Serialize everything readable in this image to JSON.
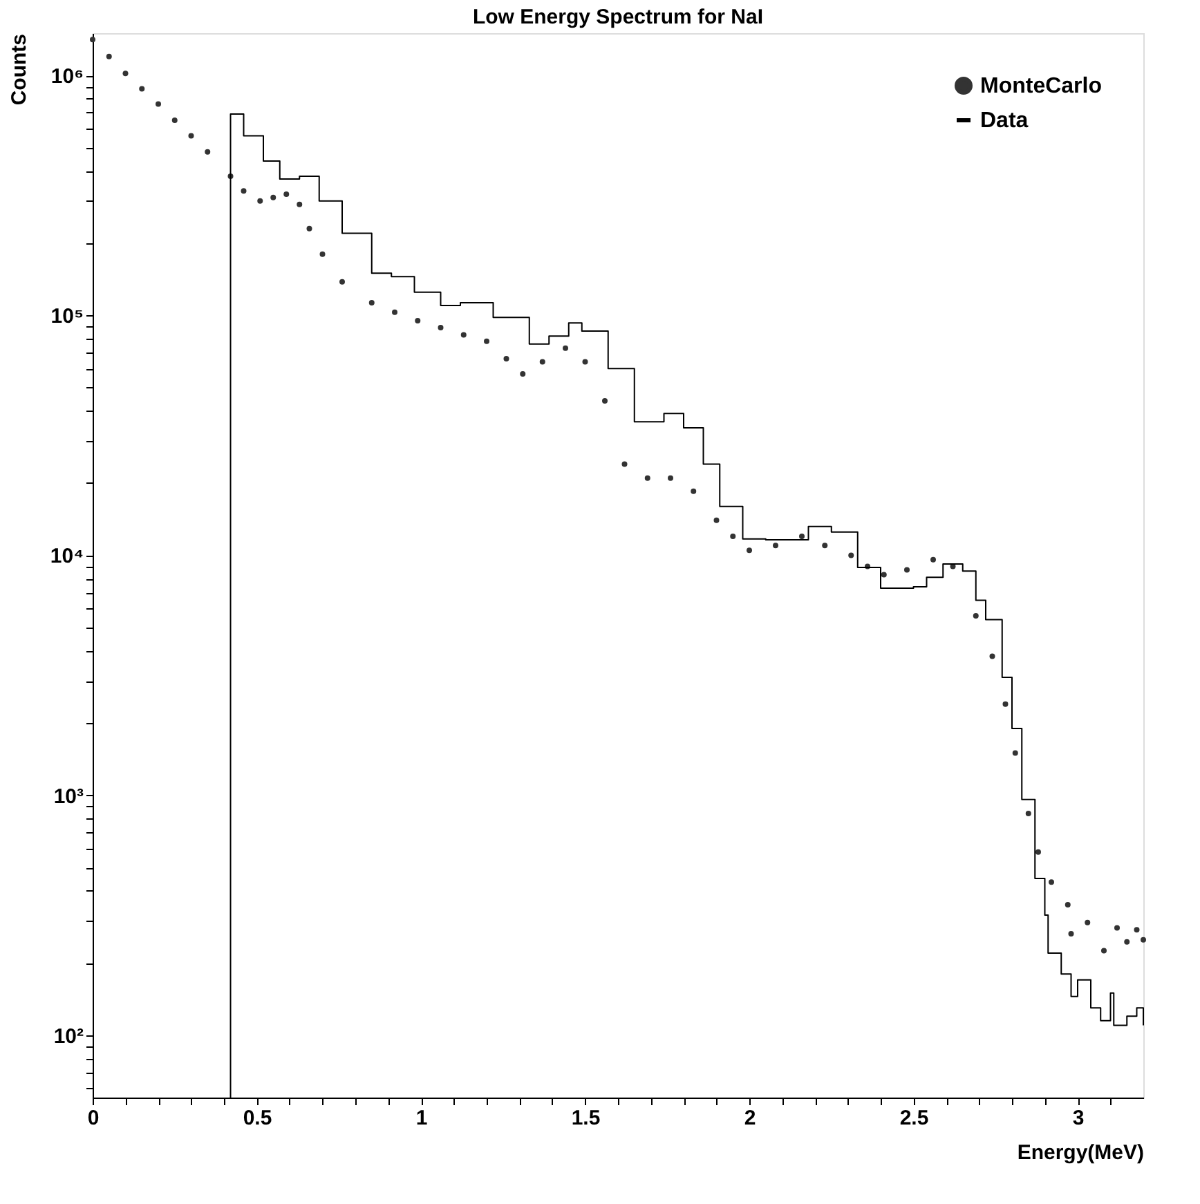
{
  "chart_data": {
    "type": "scatter",
    "title": "Low Energy Spectrum for NaI",
    "xlabel": "Energy(MeV)",
    "ylabel": "Counts",
    "log": "y",
    "xlim": [
      0,
      3.2
    ],
    "ylim": [
      55,
      1500000
    ],
    "xticks": [
      0,
      {
        "value": 0.1,
        "label": null
      },
      {
        "value": 0.2,
        "label": null
      },
      {
        "value": 0.3,
        "label": null
      },
      {
        "value": 0.4,
        "label": null
      },
      0.5,
      {
        "value": 0.6,
        "label": null
      },
      {
        "value": 0.7,
        "label": null
      },
      {
        "value": 0.8,
        "label": null
      },
      {
        "value": 0.9,
        "label": null
      },
      1,
      {
        "value": 1.1,
        "label": null
      },
      {
        "value": 1.2,
        "label": null
      },
      {
        "value": 1.3,
        "label": null
      },
      {
        "value": 1.4,
        "label": null
      },
      1.5,
      {
        "value": 1.6,
        "label": null
      },
      {
        "value": 1.7,
        "label": null
      },
      {
        "value": 1.8,
        "label": null
      },
      {
        "value": 1.9,
        "label": null
      },
      2,
      {
        "value": 2.1,
        "label": null
      },
      {
        "value": 2.2,
        "label": null
      },
      {
        "value": 2.3,
        "label": null
      },
      {
        "value": 2.4,
        "label": null
      },
      2.5,
      {
        "value": 2.6,
        "label": null
      },
      {
        "value": 2.7,
        "label": null
      },
      {
        "value": 2.8,
        "label": null
      },
      {
        "value": 2.9,
        "label": null
      },
      3,
      {
        "value": 3.1,
        "label": null
      }
    ],
    "yticks": [
      {
        "value": 60,
        "label": null
      },
      {
        "value": 70,
        "label": null
      },
      {
        "value": 80,
        "label": null
      },
      {
        "value": 90,
        "label": null
      },
      {
        "value": 100,
        "label": "10²"
      },
      {
        "value": 200,
        "label": null
      },
      {
        "value": 300,
        "label": null
      },
      {
        "value": 400,
        "label": null
      },
      {
        "value": 500,
        "label": null
      },
      {
        "value": 600,
        "label": null
      },
      {
        "value": 700,
        "label": null
      },
      {
        "value": 800,
        "label": null
      },
      {
        "value": 900,
        "label": null
      },
      {
        "value": 1000,
        "label": "10³"
      },
      {
        "value": 2000,
        "label": null
      },
      {
        "value": 3000,
        "label": null
      },
      {
        "value": 4000,
        "label": null
      },
      {
        "value": 5000,
        "label": null
      },
      {
        "value": 6000,
        "label": null
      },
      {
        "value": 7000,
        "label": null
      },
      {
        "value": 8000,
        "label": null
      },
      {
        "value": 9000,
        "label": null
      },
      {
        "value": 10000,
        "label": "10⁴"
      },
      {
        "value": 20000,
        "label": null
      },
      {
        "value": 30000,
        "label": null
      },
      {
        "value": 40000,
        "label": null
      },
      {
        "value": 50000,
        "label": null
      },
      {
        "value": 60000,
        "label": null
      },
      {
        "value": 70000,
        "label": null
      },
      {
        "value": 80000,
        "label": null
      },
      {
        "value": 90000,
        "label": null
      },
      {
        "value": 100000,
        "label": "10⁵"
      },
      {
        "value": 200000,
        "label": null
      },
      {
        "value": 300000,
        "label": null
      },
      {
        "value": 400000,
        "label": null
      },
      {
        "value": 500000,
        "label": null
      },
      {
        "value": 600000,
        "label": null
      },
      {
        "value": 700000,
        "label": null
      },
      {
        "value": 800000,
        "label": null
      },
      {
        "value": 900000,
        "label": null
      },
      {
        "value": 1000000,
        "label": "10⁶"
      }
    ],
    "grid": false,
    "legend": "top right",
    "series": [
      {
        "name": "MonteCarlo",
        "marker": "circle",
        "color": "#333333",
        "x": [
          0,
          0.05,
          0.1,
          0.15,
          0.2,
          0.25,
          0.3,
          0.35,
          0.42,
          0.46,
          0.51,
          0.55,
          0.59,
          0.63,
          0.66,
          0.7,
          0.76,
          0.85,
          0.92,
          0.99,
          1.06,
          1.13,
          1.2,
          1.26,
          1.31,
          1.37,
          1.44,
          1.5,
          1.56,
          1.62,
          1.69,
          1.76,
          1.83,
          1.9,
          1.95,
          2.0,
          2.08,
          2.16,
          2.23,
          2.31,
          2.36,
          2.41,
          2.48,
          2.56,
          2.62,
          2.69,
          2.74,
          2.78,
          2.81,
          2.85,
          2.88,
          2.92,
          2.97,
          2.98,
          3.03,
          3.08,
          3.12,
          3.15,
          3.18,
          3.2
        ],
        "values": [
          1410000,
          1200000,
          1020000,
          880000,
          760000,
          650000,
          560000,
          480000,
          380000,
          330000,
          300000,
          310000,
          320000,
          290000,
          230000,
          180000,
          138000,
          113000,
          103000,
          95000,
          89000,
          83000,
          78000,
          66000,
          57000,
          64000,
          73000,
          64000,
          44000,
          24000,
          21000,
          21000,
          18500,
          14000,
          12000,
          10500,
          11000,
          12000,
          11000,
          10000,
          9000,
          8300,
          8700,
          9600,
          9000,
          5600,
          3800,
          2400,
          1500,
          840,
          580,
          435,
          350,
          265,
          295,
          225,
          280,
          245,
          275,
          250
        ]
      },
      {
        "name": "Data",
        "type": "step",
        "line_style": "solid",
        "color": "#000000",
        "x": [
          0.42,
          0.42,
          0.46,
          0.52,
          0.57,
          0.63,
          0.69,
          0.76,
          0.85,
          0.91,
          0.98,
          1.06,
          1.12,
          1.22,
          1.33,
          1.39,
          1.45,
          1.49,
          1.57,
          1.65,
          1.74,
          1.8,
          1.86,
          1.91,
          1.98,
          2.05,
          2.18,
          2.25,
          2.33,
          2.4,
          2.5,
          2.54,
          2.59,
          2.65,
          2.69,
          2.72,
          2.77,
          2.8,
          2.83,
          2.87,
          2.9,
          2.91,
          2.95,
          2.98,
          3.0,
          3.04,
          3.07,
          3.1,
          3.11,
          3.15,
          3.18,
          3.2
        ],
        "values": [
          55,
          690000,
          560000,
          440000,
          370000,
          380000,
          300000,
          220000,
          150000,
          145000,
          125000,
          110000,
          113000,
          98000,
          76000,
          82000,
          93000,
          86000,
          60000,
          36000,
          39000,
          34000,
          24000,
          16000,
          11700,
          11600,
          13200,
          12500,
          8900,
          7300,
          7400,
          8100,
          9200,
          8600,
          6500,
          5400,
          3100,
          1900,
          960,
          450,
          317,
          220,
          180,
          145,
          170,
          130,
          115,
          150,
          110,
          120,
          130,
          110
        ]
      }
    ]
  }
}
